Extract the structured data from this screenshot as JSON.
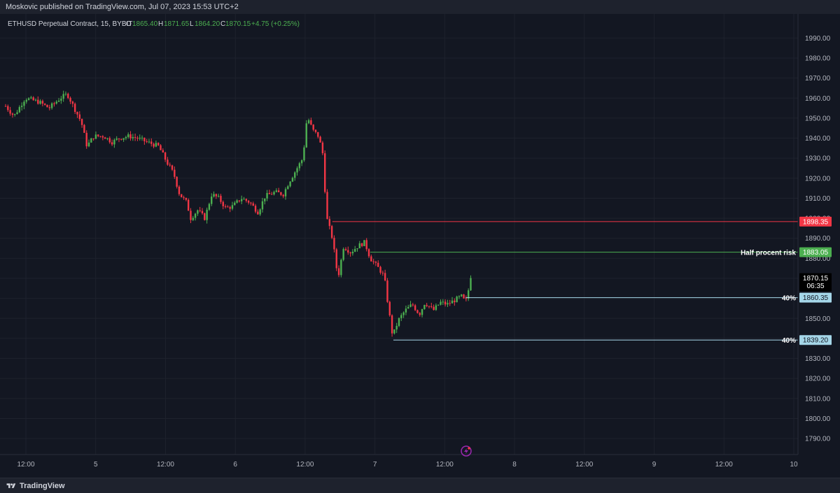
{
  "publisher_line": "Moskovic published on TradingView.com, Jul 07, 2023 15:53 UTC+2",
  "footer": {
    "brand": "TradingView"
  },
  "legend": {
    "symbol": "ETHUSD Perpetual Contract, 15, BYBIT",
    "o_label": "O",
    "o": "1865.40",
    "h_label": "H",
    "h": "1871.65",
    "l_label": "L",
    "l": "1864.20",
    "c_label": "C",
    "c": "1870.15",
    "change": "+4.75 (+0.25%)"
  },
  "price_badge": {
    "price": "1870.15",
    "countdown": "06:35"
  },
  "colors": {
    "background": "#131722",
    "up": "#4caf50",
    "down": "#f23645",
    "grid": "#1e222d",
    "axis_text": "#b2b5be"
  },
  "chart_data": {
    "type": "candlestick",
    "title": "ETHUSD Perpetual Contract, 15, BYBIT",
    "y_axis": {
      "side": "right",
      "ticks": [
        1790,
        1800,
        1810,
        1820,
        1830,
        1840,
        1850,
        1860,
        1870,
        1880,
        1890,
        1900,
        1910,
        1920,
        1930,
        1940,
        1950,
        1960,
        1970,
        1980,
        1990
      ],
      "tick_labels": [
        "1790.00",
        "1800.00",
        "1810.00",
        "1820.00",
        "1830.00",
        "1840.00",
        "1850.00",
        "1860.00",
        "1870.00",
        "1880.00",
        "1890.00",
        "1900.00",
        "1910.00",
        "1920.00",
        "1930.00",
        "1940.00",
        "1950.00",
        "1960.00",
        "1970.00",
        "1980.00",
        "1990.00"
      ],
      "range": [
        1782,
        2002
      ]
    },
    "x_axis": {
      "tick_labels": [
        "12:00",
        "5",
        "12:00",
        "6",
        "12:00",
        "7",
        "12:00",
        "8",
        "12:00",
        "9",
        "12:00",
        "10"
      ],
      "range_bars": [
        0,
        1130
      ]
    },
    "grid": true,
    "close_path": [
      [
        0,
        1956
      ],
      [
        12,
        1951
      ],
      [
        28,
        1960
      ],
      [
        48,
        1958
      ],
      [
        62,
        1955
      ],
      [
        78,
        1960
      ],
      [
        88,
        1962
      ],
      [
        98,
        1955
      ],
      [
        108,
        1948
      ],
      [
        116,
        1936
      ],
      [
        126,
        1941
      ],
      [
        140,
        1941
      ],
      [
        152,
        1938
      ],
      [
        162,
        1940
      ],
      [
        176,
        1941
      ],
      [
        188,
        1940
      ],
      [
        202,
        1938
      ],
      [
        210,
        1937
      ],
      [
        218,
        1936
      ],
      [
        230,
        1928
      ],
      [
        240,
        1922
      ],
      [
        248,
        1912
      ],
      [
        258,
        1908
      ],
      [
        264,
        1900
      ],
      [
        274,
        1904
      ],
      [
        284,
        1900
      ],
      [
        294,
        1912
      ],
      [
        304,
        1910
      ],
      [
        314,
        1905
      ],
      [
        324,
        1906
      ],
      [
        336,
        1910
      ],
      [
        348,
        1908
      ],
      [
        360,
        1903
      ],
      [
        370,
        1911
      ],
      [
        384,
        1913
      ],
      [
        396,
        1912
      ],
      [
        404,
        1918
      ],
      [
        414,
        1924
      ],
      [
        424,
        1930
      ],
      [
        430,
        1951
      ],
      [
        438,
        1944
      ],
      [
        446,
        1941
      ],
      [
        452,
        1933
      ],
      [
        458,
        1900
      ],
      [
        466,
        1890
      ],
      [
        474,
        1870
      ],
      [
        482,
        1886
      ],
      [
        492,
        1883
      ],
      [
        502,
        1886
      ],
      [
        512,
        1888
      ],
      [
        520,
        1880
      ],
      [
        532,
        1875
      ],
      [
        540,
        1871
      ],
      [
        546,
        1855
      ],
      [
        552,
        1841
      ],
      [
        560,
        1849
      ],
      [
        570,
        1854
      ],
      [
        580,
        1857
      ],
      [
        590,
        1852
      ],
      [
        598,
        1858
      ],
      [
        610,
        1854
      ],
      [
        620,
        1858
      ],
      [
        630,
        1857
      ],
      [
        640,
        1859
      ],
      [
        650,
        1861
      ],
      [
        656,
        1858
      ],
      [
        664,
        1870.15
      ]
    ],
    "last_price": 1870.15,
    "horizontal_levels": [
      {
        "price": 1898.35,
        "label": "1898.35",
        "text": "",
        "color": "#f23645",
        "from_bar": 466
      },
      {
        "price": 1883.05,
        "label": "1883.05",
        "text": "Half procent risk",
        "color": "#4caf50",
        "from_bar": 520
      },
      {
        "price": 1860.35,
        "label": "1860.35",
        "text": "40%",
        "color": "#a5d6e8",
        "from_bar": 656
      },
      {
        "price": 1839.2,
        "label": "1839.20",
        "text": "40%",
        "color": "#a5d6e8",
        "from_bar": 553
      }
    ]
  }
}
